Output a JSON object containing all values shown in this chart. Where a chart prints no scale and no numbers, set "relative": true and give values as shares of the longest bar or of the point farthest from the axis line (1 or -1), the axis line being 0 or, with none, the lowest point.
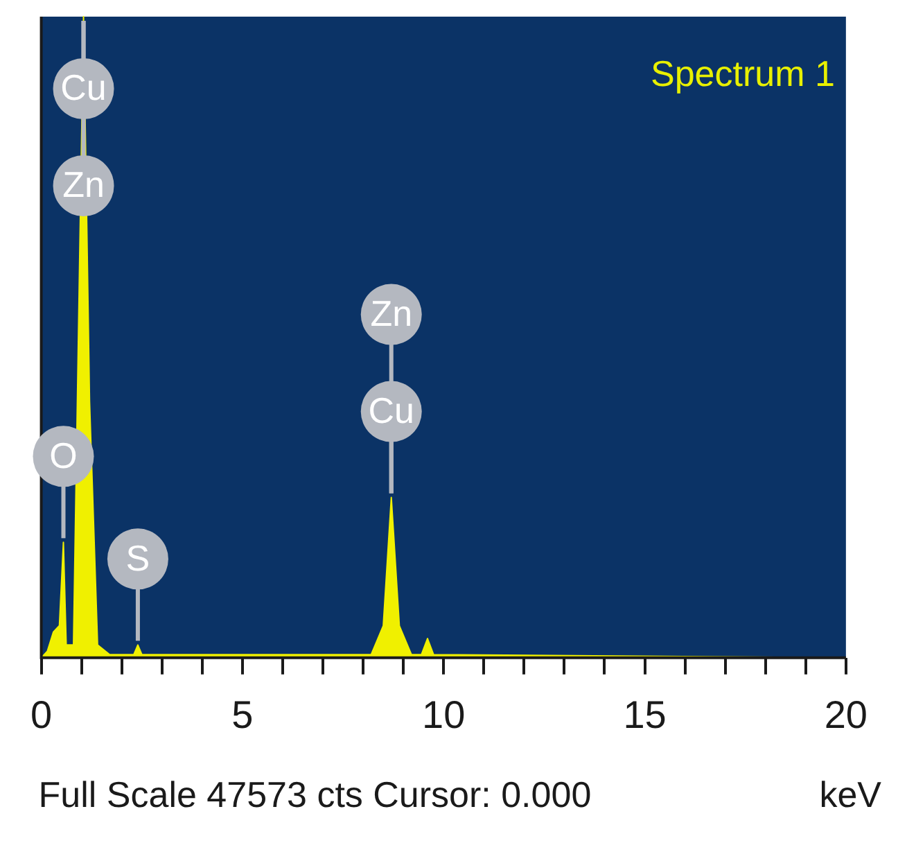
{
  "chart_data": {
    "type": "area",
    "title": "Spectrum 1",
    "xlabel": "keV",
    "relative": true,
    "marker": "none",
    "grid": false,
    "x": [
      0,
      0.15,
      0.3,
      0.45,
      0.55,
      0.62,
      0.8,
      1.05,
      1.2,
      1.4,
      1.7,
      2.3,
      2.4,
      2.5,
      8.2,
      8.5,
      8.7,
      8.9,
      9.2,
      9.45,
      9.6,
      9.75,
      20
    ],
    "series": [
      {
        "color": "#f0f000",
        "values": [
          0,
          0.01,
          0.04,
          0.05,
          0.18,
          0.02,
          0.02,
          1.0,
          0.4,
          0.02,
          0.005,
          0.005,
          0.02,
          0.005,
          0.005,
          0.05,
          0.25,
          0.05,
          0.005,
          0.005,
          0.03,
          0.005,
          0
        ]
      }
    ],
    "xlim": [
      0,
      20
    ],
    "xticks": [
      0,
      {
        "value": 1,
        "label": null
      },
      {
        "value": 2,
        "label": null
      },
      {
        "value": 3,
        "label": null
      },
      {
        "value": 4,
        "label": null
      },
      5,
      {
        "value": 6,
        "label": null
      },
      {
        "value": 7,
        "label": null
      },
      {
        "value": 8,
        "label": null
      },
      {
        "value": 9,
        "label": null
      },
      10,
      {
        "value": 11,
        "label": null
      },
      {
        "value": 12,
        "label": null
      },
      {
        "value": 13,
        "label": null
      },
      {
        "value": 14,
        "label": null
      },
      15,
      {
        "value": 16,
        "label": null
      },
      {
        "value": 17,
        "label": null
      },
      {
        "value": 18,
        "label": null
      },
      {
        "value": 19,
        "label": null
      },
      20
    ],
    "annotations": [
      {
        "text": "Zn",
        "x": 1.05,
        "y": 1.0
      },
      {
        "text": "Cu",
        "x": 1.05,
        "y": 1.0
      },
      {
        "text": "O",
        "x": 0.55,
        "y": 0.18
      },
      {
        "text": "S",
        "x": 2.4,
        "y": 0.02
      },
      {
        "text": "Cu",
        "x": 8.7,
        "y": 0.25
      },
      {
        "text": "Zn",
        "x": 8.7,
        "y": 0.25
      },
      "Full Scale 47573 cts Cursor: 0.000"
    ]
  }
}
